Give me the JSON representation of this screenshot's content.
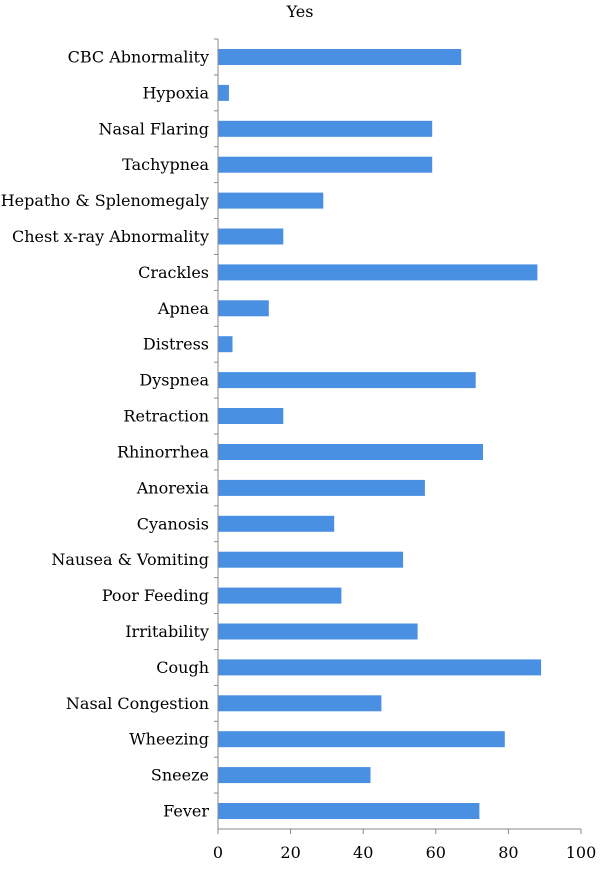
{
  "chart_data": {
    "type": "bar",
    "orientation": "horizontal",
    "title": "Yes",
    "categories": [
      "CBC Abnormality",
      "Hypoxia",
      "Nasal Flaring",
      "Tachypnea",
      "Hepatho & Splenomegaly",
      "Chest x-ray Abnormality",
      "Crackles",
      "Apnea",
      "Distress",
      "Dyspnea",
      "Retraction",
      "Rhinorrhea",
      "Anorexia",
      "Cyanosis",
      "Nausea & Vomiting",
      "Poor Feeding",
      "Irritability",
      "Cough",
      "Nasal Congestion",
      "Wheezing",
      "Sneeze",
      "Fever"
    ],
    "values": [
      67,
      3,
      59,
      59,
      29,
      18,
      88,
      14,
      4,
      71,
      18,
      73,
      57,
      32,
      51,
      34,
      55,
      89,
      45,
      79,
      42,
      72
    ],
    "xlim": [
      0,
      100
    ],
    "xticks": [
      0,
      20,
      40,
      60,
      80,
      100
    ],
    "xlabel": "",
    "ylabel": "",
    "bar_color": "#4a90e2",
    "grid": false,
    "legend": "none"
  }
}
